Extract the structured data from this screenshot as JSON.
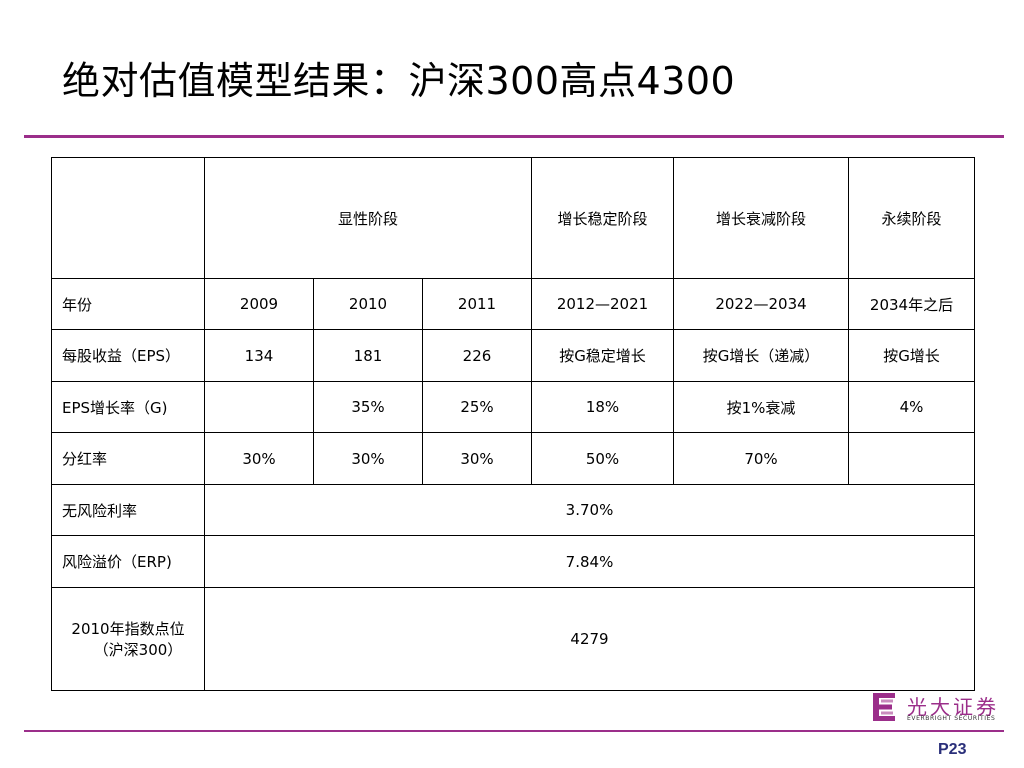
{
  "slide": {
    "title": "绝对估值模型结果：沪深300高点4300",
    "page_number": "P23",
    "accent_color": "#9b2e8a"
  },
  "table": {
    "stage_headers": [
      "",
      "显性阶段",
      "增长稳定阶段",
      "增长衰减阶段",
      "永续阶段"
    ],
    "rows": [
      {
        "label": "年份",
        "cells": [
          "2009",
          "2010",
          "2011",
          "2012—2021",
          "2022—2034",
          "2034年之后"
        ]
      },
      {
        "label": "每股收益（EPS）",
        "cells": [
          "134",
          "181",
          "226",
          "按G稳定增长",
          "按G增长（递减）",
          "按G增长"
        ]
      },
      {
        "label": "EPS增长率（G)",
        "cells": [
          "",
          "35%",
          "25%",
          "18%",
          "按1%衰减",
          "4%"
        ]
      },
      {
        "label": "分红率",
        "cells": [
          "30%",
          "30%",
          "30%",
          "50%",
          "70%",
          ""
        ]
      },
      {
        "label": "无风险利率",
        "value": "3.70%"
      },
      {
        "label": "风险溢价（ERP)",
        "value": "7.84%"
      },
      {
        "label_line1": "2010年指数点位",
        "label_line2": "（沪深300）",
        "value": "4279"
      }
    ]
  },
  "logo": {
    "name_cn": "光大证券",
    "name_en": "EVERBRIGHT SECURITIES",
    "icon": "everbright-logo-icon"
  }
}
